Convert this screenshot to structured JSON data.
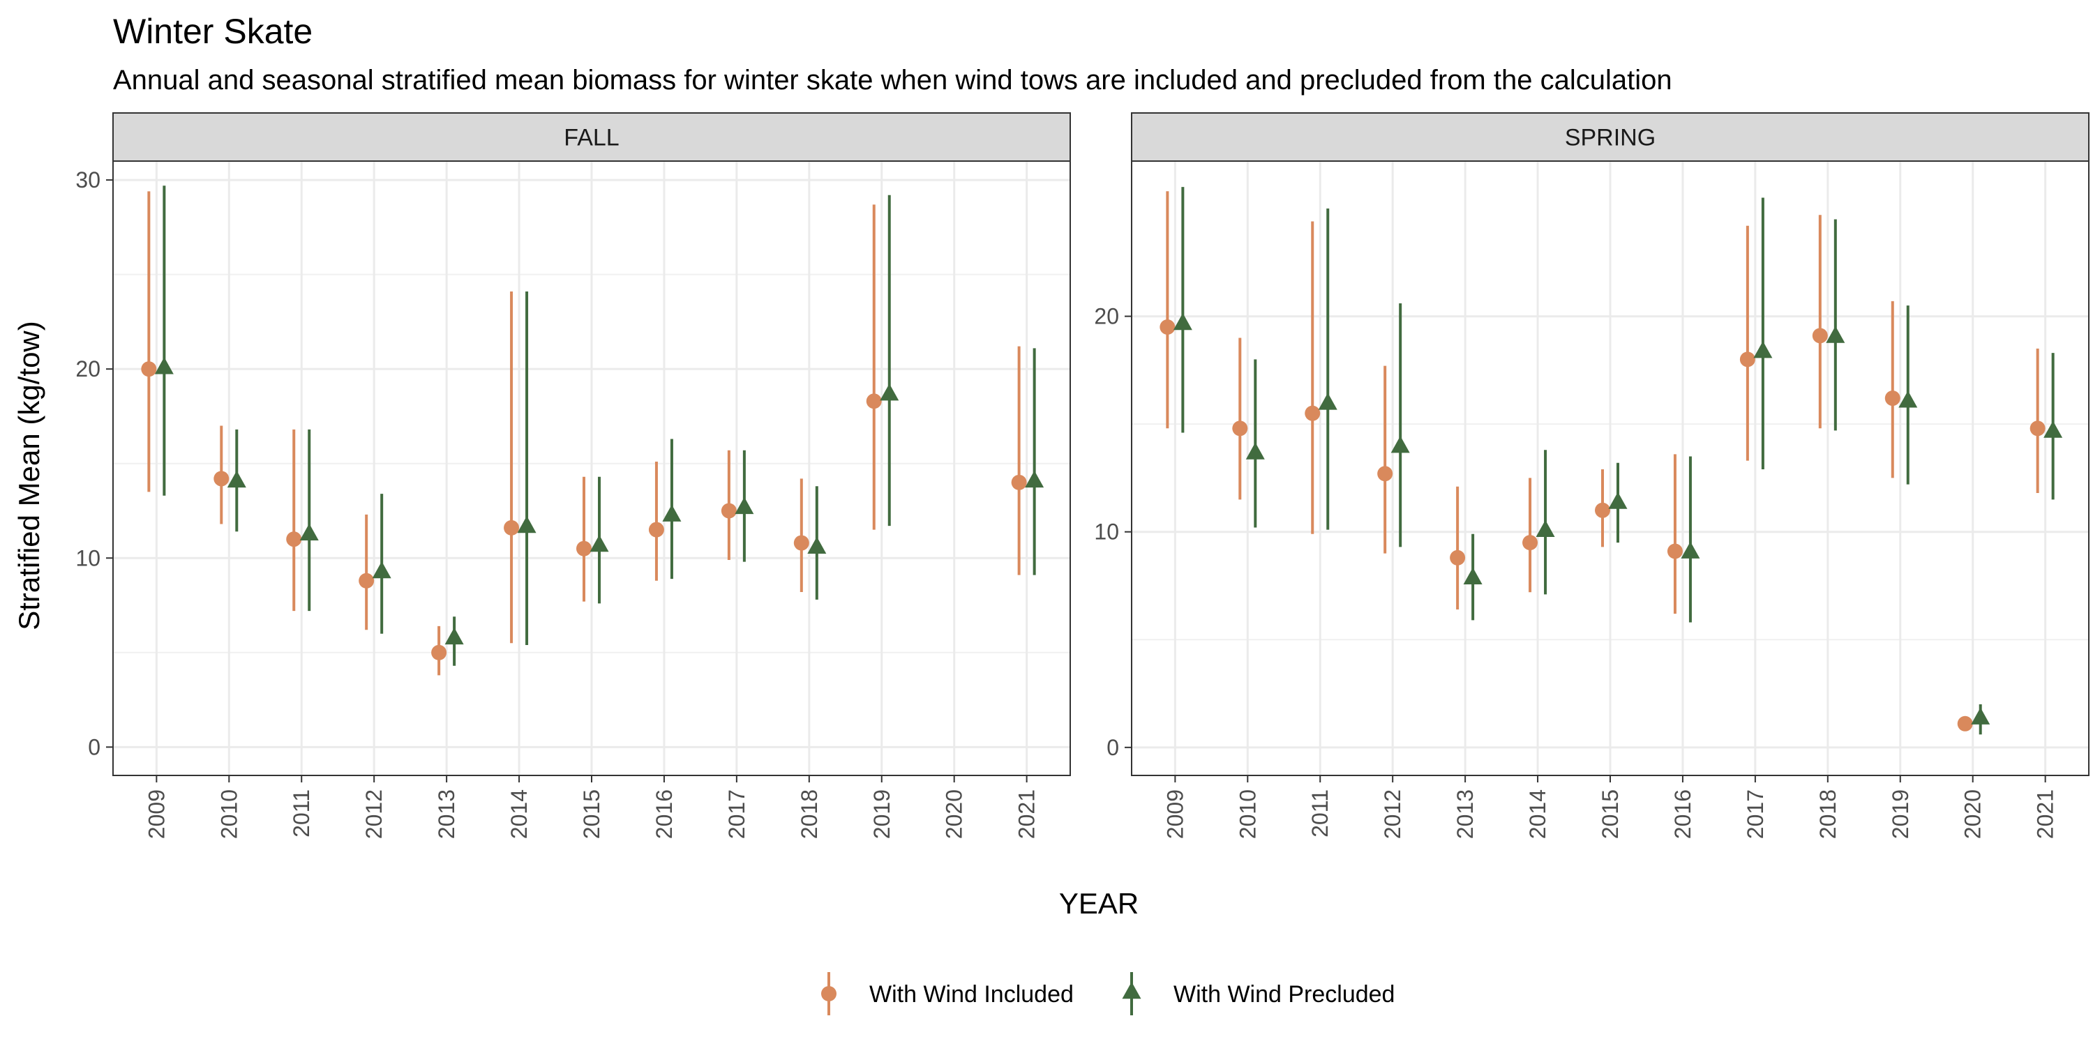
{
  "chart_data": {
    "type": "scatter",
    "subtype": "point-range (faceted)",
    "title": "Winter Skate",
    "subtitle": "Annual and seasonal stratified mean biomass for winter skate when wind tows are included and precluded from the calculation",
    "xlabel": "YEAR",
    "ylabel": "Stratified Mean (kg/tow)",
    "categories": [
      "2009",
      "2010",
      "2011",
      "2012",
      "2013",
      "2014",
      "2015",
      "2016",
      "2017",
      "2018",
      "2019",
      "2020",
      "2021"
    ],
    "grid": true,
    "legend_position": "bottom",
    "series_style": [
      {
        "name": "With Wind Included",
        "color": "#d9895c",
        "shape": "circle"
      },
      {
        "name": "With Wind Precluded",
        "color": "#416b3f",
        "shape": "triangle"
      }
    ],
    "facets": [
      {
        "label": "FALL",
        "ylim": [
          -1.5,
          31
        ],
        "yticks": [
          0,
          10,
          20,
          30
        ],
        "series": [
          {
            "name": "With Wind Included",
            "mean": [
              20.0,
              14.2,
              11.0,
              8.8,
              5.0,
              11.6,
              10.5,
              11.5,
              12.5,
              10.8,
              18.3,
              null,
              14.0
            ],
            "lower": [
              13.5,
              11.8,
              7.2,
              6.2,
              3.8,
              5.5,
              7.7,
              8.8,
              9.9,
              8.2,
              11.5,
              null,
              9.1
            ],
            "upper": [
              29.4,
              17.0,
              16.8,
              12.3,
              6.4,
              24.1,
              14.3,
              15.1,
              15.7,
              14.2,
              28.7,
              null,
              21.2
            ]
          },
          {
            "name": "With Wind Precluded",
            "mean": [
              20.0,
              14.0,
              11.2,
              9.2,
              5.7,
              11.6,
              10.6,
              12.2,
              12.6,
              10.5,
              18.6,
              null,
              14.0
            ],
            "lower": [
              13.3,
              11.4,
              7.2,
              6.0,
              4.3,
              5.4,
              7.6,
              8.9,
              9.8,
              7.8,
              11.7,
              null,
              9.1
            ],
            "upper": [
              29.7,
              16.8,
              16.8,
              13.4,
              6.9,
              24.1,
              14.3,
              16.3,
              15.7,
              13.8,
              29.2,
              null,
              21.1
            ]
          }
        ]
      },
      {
        "label": "SPRING",
        "ylim": [
          -1.3,
          27.2
        ],
        "yticks": [
          0,
          10,
          20
        ],
        "series": [
          {
            "name": "With Wind Included",
            "mean": [
              19.5,
              14.8,
              15.5,
              12.7,
              8.8,
              9.5,
              11.0,
              9.1,
              18.0,
              19.1,
              16.2,
              1.1,
              14.8
            ],
            "lower": [
              14.8,
              11.5,
              9.9,
              9.0,
              6.4,
              7.2,
              9.3,
              6.2,
              13.3,
              14.8,
              12.5,
              0.8,
              11.8
            ],
            "upper": [
              25.8,
              19.0,
              24.4,
              17.7,
              12.1,
              12.5,
              12.9,
              13.6,
              24.2,
              24.7,
              20.7,
              1.4,
              18.5
            ]
          },
          {
            "name": "With Wind Precluded",
            "mean": [
              19.6,
              13.6,
              15.9,
              13.9,
              7.8,
              10.0,
              11.3,
              9.0,
              18.3,
              19.0,
              16.0,
              1.3,
              14.6
            ],
            "lower": [
              14.6,
              10.2,
              10.1,
              9.3,
              5.9,
              7.1,
              9.5,
              5.8,
              12.9,
              14.7,
              12.2,
              0.6,
              11.5
            ],
            "upper": [
              26.0,
              18.0,
              25.0,
              20.6,
              9.9,
              13.8,
              13.2,
              13.5,
              25.5,
              24.5,
              20.5,
              2.0,
              18.3
            ]
          }
        ]
      }
    ]
  }
}
